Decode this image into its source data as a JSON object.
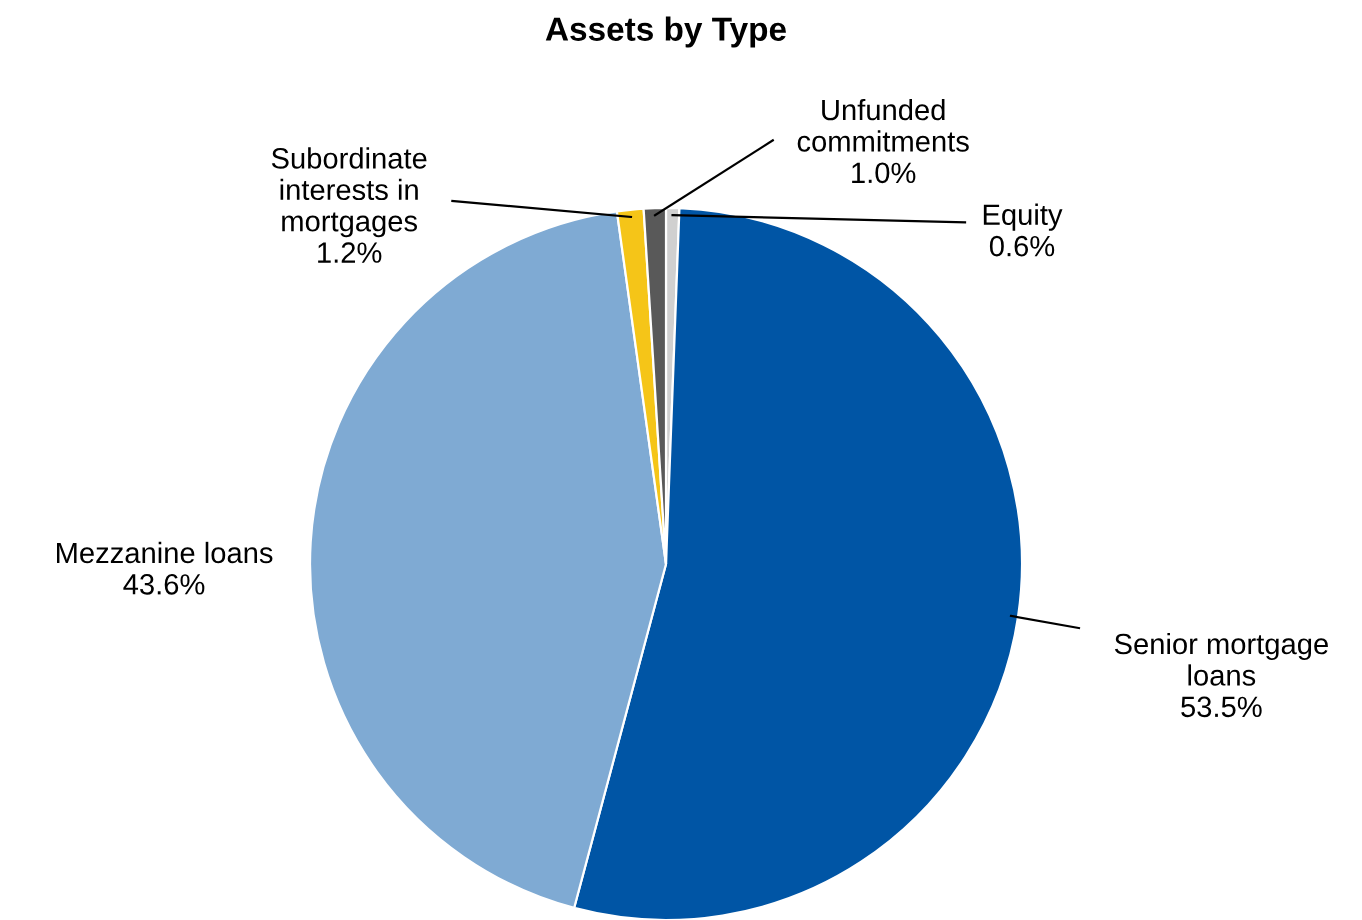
{
  "chart_data": {
    "type": "pie",
    "title": "Assets by Type",
    "categories": [
      "Equity",
      "Senior mortgage\nloans",
      "Mezzanine loans",
      "Subordinate\ninterests in\nmortgages",
      "Unfunded\ncommitments"
    ],
    "values": [
      0.6,
      53.5,
      43.6,
      1.2,
      1.0
    ],
    "value_labels": [
      "0.6%",
      "53.5%",
      "43.6%",
      "1.2%",
      "1.0%"
    ],
    "colors": [
      "#d0d0d0",
      "#0055a5",
      "#7faad3",
      "#f5c518",
      "#595959"
    ],
    "legend": false
  }
}
